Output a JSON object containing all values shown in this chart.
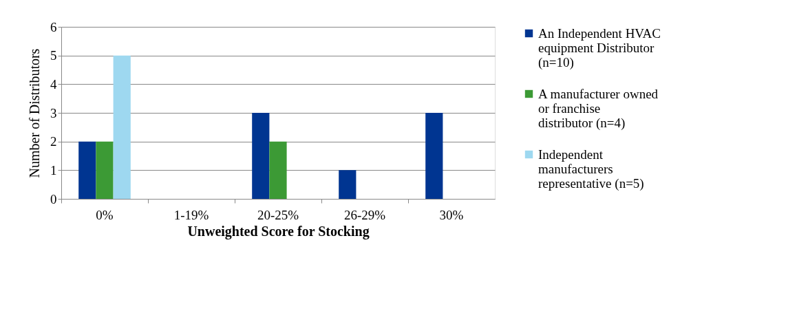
{
  "chart_data": {
    "type": "bar",
    "xlabel": "Unweighted Score for Stocking",
    "ylabel": "Number of Distributors",
    "categories": [
      "0%",
      "1-19%",
      "20-25%",
      "26-29%",
      "30%"
    ],
    "series": [
      {
        "name": "An Independent HVAC equipment Distributor (n=10)",
        "color": "#003591",
        "values": [
          2,
          0,
          3,
          1,
          3
        ]
      },
      {
        "name": "A manufacturer owned or franchise distributor (n=4)",
        "color": "#3c9a35",
        "values": [
          2,
          0,
          2,
          0,
          0
        ]
      },
      {
        "name": " Independent manufacturers representative (n=5)",
        "color": "#9ed8f0",
        "values": [
          5,
          0,
          0,
          0,
          0
        ]
      }
    ],
    "ylim": [
      0,
      6
    ],
    "yticks": [
      0,
      1,
      2,
      3,
      4,
      5,
      6
    ],
    "grid": "y",
    "legend": "right"
  }
}
